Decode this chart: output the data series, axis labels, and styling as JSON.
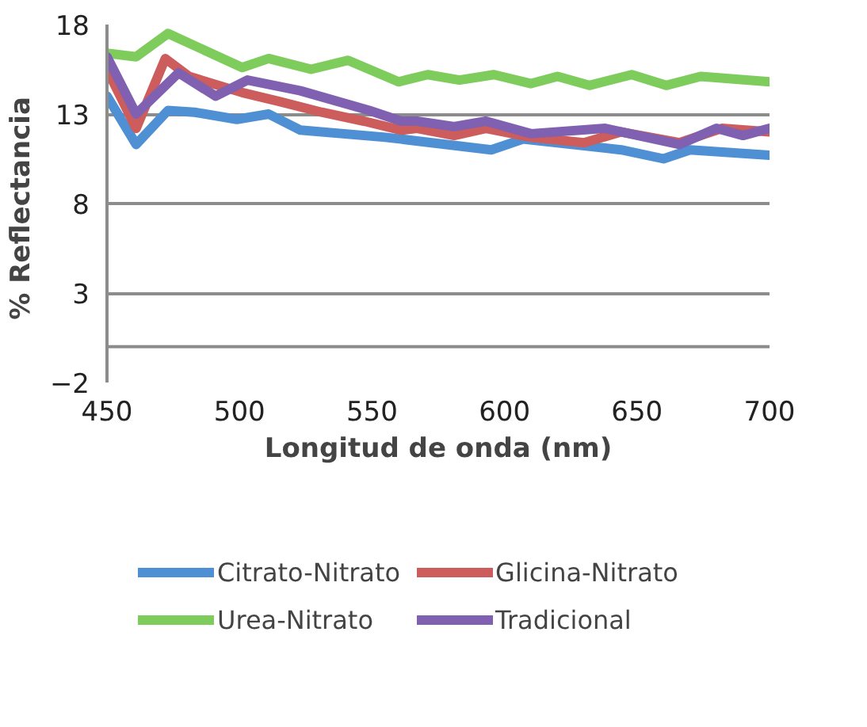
{
  "chart_data": {
    "type": "line",
    "xlabel": "Longitud de onda (nm)",
    "ylabel": "%  Reflectancia",
    "xlim": [
      450,
      700
    ],
    "xticks": [
      450,
      500,
      550,
      600,
      650,
      700
    ],
    "ylim": [
      -2,
      18
    ],
    "yticks": [
      -2,
      3,
      8,
      13,
      18
    ],
    "grid": "y",
    "legend": "bottom",
    "line_style": "solid",
    "ref_lines": [
      {
        "axis": "y",
        "value": 0,
        "label": null,
        "color": "#8c8c8c"
      }
    ],
    "series": [
      {
        "name": "Citrato-Nitrato",
        "color": "#4f8fd4",
        "x": [
          450,
          461,
          473,
          483,
          499,
          511,
          523,
          555,
          561,
          595,
          607,
          644,
          660,
          670,
          700
        ],
        "values": [
          14.0,
          11.3,
          13.2,
          13.1,
          12.7,
          13.0,
          12.1,
          11.7,
          11.6,
          11.0,
          11.6,
          11.0,
          10.5,
          11.0,
          10.7
        ]
      },
      {
        "name": "Glicina-Nitrato",
        "color": "#cd5c5c",
        "x": [
          450,
          461,
          472,
          481,
          501,
          515,
          531,
          547,
          561,
          567,
          581,
          593,
          610,
          630,
          644,
          666,
          682,
          700
        ],
        "values": [
          15.5,
          12.2,
          16.1,
          15.1,
          14.2,
          13.7,
          13.1,
          12.6,
          12.1,
          12.2,
          11.8,
          12.2,
          11.7,
          11.4,
          12.0,
          11.4,
          12.2,
          12.0
        ]
      },
      {
        "name": "Urea-Nitrato",
        "color": "#7dcc5c",
        "x": [
          450,
          461,
          473,
          501,
          511,
          527,
          541,
          560,
          571,
          583,
          596,
          610,
          620,
          632,
          648,
          661,
          674,
          700
        ],
        "values": [
          16.4,
          16.2,
          17.5,
          15.6,
          16.1,
          15.5,
          16.0,
          14.8,
          15.2,
          14.9,
          15.2,
          14.7,
          15.1,
          14.6,
          15.2,
          14.6,
          15.1,
          14.8
        ]
      },
      {
        "name": "Tradicional",
        "color": "#8060b0",
        "x": [
          450,
          461,
          477,
          491,
          503,
          523,
          549,
          561,
          567,
          581,
          593,
          610,
          638,
          666,
          680,
          690,
          700
        ],
        "values": [
          16.2,
          13.0,
          15.3,
          14.0,
          14.9,
          14.3,
          13.2,
          12.6,
          12.6,
          12.3,
          12.6,
          11.9,
          12.2,
          11.3,
          12.2,
          11.8,
          12.2
        ]
      }
    ]
  }
}
